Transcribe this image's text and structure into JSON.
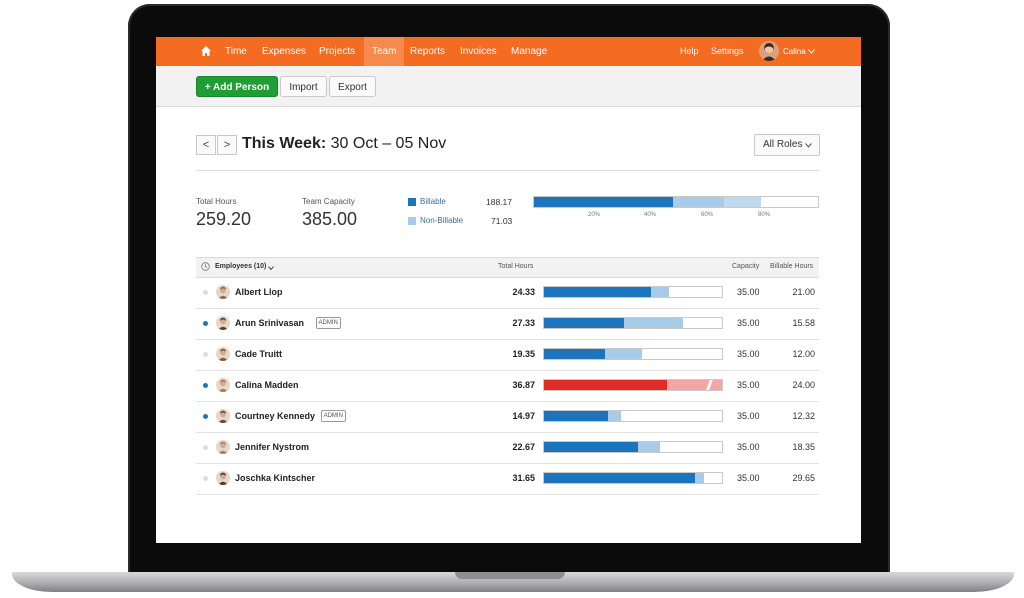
{
  "nav": {
    "items": [
      "Time",
      "Expenses",
      "Projects",
      "Team",
      "Reports",
      "Invoices",
      "Manage"
    ],
    "active": "Team",
    "help": "Help",
    "settings": "Settings",
    "user": "Calina"
  },
  "toolbar": {
    "add_person": "+ Add Person",
    "import": "Import",
    "export": "Export"
  },
  "header": {
    "prev": "<",
    "next": ">",
    "title_bold": "This Week:",
    "title_range": "30 Oct – 05 Nov",
    "roles": "All Roles"
  },
  "summary": {
    "total_hours_label": "Total Hours",
    "total_hours": "259.20",
    "team_capacity_label": "Team Capacity",
    "team_capacity": "385.00",
    "billable_label": "Billable",
    "billable_value": "188.17",
    "nonbillable_label": "Non-Billable",
    "nonbillable_value": "71.03",
    "ticks": [
      "20%",
      "40%",
      "60%",
      "80%"
    ],
    "bar_billable_pct": 49,
    "bar_nonbillable_pct": 18,
    "bar_overflow_pct": 13
  },
  "table": {
    "employees_label": "Employees (10)",
    "col_total": "Total Hours",
    "col_capacity": "Capacity",
    "col_billable": "Billable Hours",
    "rows": [
      {
        "name": "Albert Llop",
        "badge": "",
        "total": "24.33",
        "capacity": "35.00",
        "billable": "21.00",
        "bill_pct": 60,
        "nonbill_pct": 10,
        "dot": "#dddddd",
        "over": false
      },
      {
        "name": "Arun Srinivasan",
        "badge": "ADMIN",
        "total": "27.33",
        "capacity": "35.00",
        "billable": "15.58",
        "bill_pct": 45,
        "nonbill_pct": 33,
        "dot": "#1c75bc",
        "over": false
      },
      {
        "name": "Cade Truitt",
        "badge": "",
        "total": "19.35",
        "capacity": "35.00",
        "billable": "12.00",
        "bill_pct": 34,
        "nonbill_pct": 21,
        "dot": "#dddddd",
        "over": false
      },
      {
        "name": "Calina Madden",
        "badge": "",
        "total": "36.87",
        "capacity": "35.00",
        "billable": "24.00",
        "bill_pct": 69,
        "nonbill_pct": 31,
        "dot": "#1c75bc",
        "over": true
      },
      {
        "name": "Courtney Kennedy",
        "badge": "ADMIN",
        "total": "14.97",
        "capacity": "35.00",
        "billable": "12.32",
        "bill_pct": 36,
        "nonbill_pct": 7,
        "dot": "#1c75bc",
        "over": false
      },
      {
        "name": "Jennifer Nystrom",
        "badge": "",
        "total": "22.67",
        "capacity": "35.00",
        "billable": "18.35",
        "bill_pct": 53,
        "nonbill_pct": 12,
        "dot": "#dddddd",
        "over": false
      },
      {
        "name": "Joschka Kintscher",
        "badge": "",
        "total": "31.65",
        "capacity": "35.00",
        "billable": "29.65",
        "bill_pct": 85,
        "nonbill_pct": 5,
        "dot": "#dddddd",
        "over": false
      }
    ]
  },
  "colors": {
    "brand": "#f36c21",
    "billable": "#1c75bc",
    "nonbillable": "#a8cbe8",
    "over_billable": "#e22b26",
    "over_nonbillable": "#f3a6a4",
    "add_button": "#1f9e33"
  },
  "icons": {
    "home": "home-icon",
    "clock": "clock-icon",
    "chevron": "chevron-down-icon"
  }
}
